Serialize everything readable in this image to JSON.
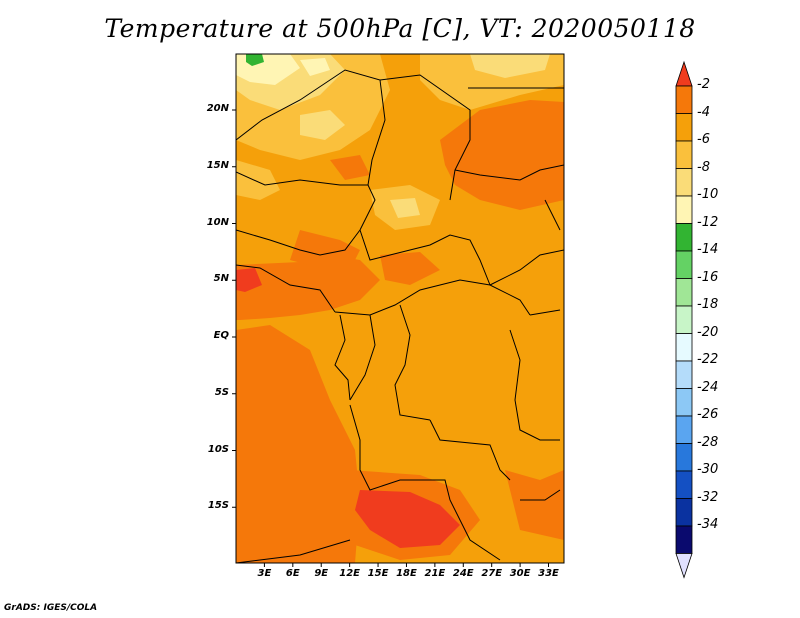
{
  "title": "Temperature at 500hPa [C], VT: 2020050118",
  "footer": "GrADS: IGES/COLA",
  "lat_ticks": [
    {
      "label": "20N",
      "lat": 20
    },
    {
      "label": "15N",
      "lat": 15
    },
    {
      "label": "10N",
      "lat": 10
    },
    {
      "label": "5N",
      "lat": 5
    },
    {
      "label": "EQ",
      "lat": 0
    },
    {
      "label": "5S",
      "lat": -5
    },
    {
      "label": "10S",
      "lat": -10
    },
    {
      "label": "15S",
      "lat": -15
    }
  ],
  "lon_ticks": [
    {
      "label": "3E",
      "lon": 3
    },
    {
      "label": "6E",
      "lon": 6
    },
    {
      "label": "9E",
      "lon": 9
    },
    {
      "label": "12E",
      "lon": 12
    },
    {
      "label": "15E",
      "lon": 15
    },
    {
      "label": "18E",
      "lon": 18
    },
    {
      "label": "21E",
      "lon": 21
    },
    {
      "label": "24E",
      "lon": 24
    },
    {
      "label": "27E",
      "lon": 27
    },
    {
      "label": "30E",
      "lon": 30
    },
    {
      "label": "33E",
      "lon": 33
    }
  ],
  "colorbar": {
    "levels": [
      "-2",
      "-4",
      "-6",
      "-8",
      "-10",
      "-12",
      "-14",
      "-16",
      "-18",
      "-20",
      "-22",
      "-24",
      "-26",
      "-28",
      "-30",
      "-32",
      "-34"
    ],
    "colors": [
      "#f03c1e",
      "#f5780a",
      "#f5a00a",
      "#fac03c",
      "#fadc78",
      "#fff5b4",
      "#32b432",
      "#64d264",
      "#a0e696",
      "#c8f5c8",
      "#e6faff",
      "#b4dcfa",
      "#8cc8f5",
      "#5aa5f0",
      "#2878dc",
      "#1450c3",
      "#0a32a0",
      "#0a0a6e",
      "#e1e1ff"
    ]
  },
  "colors": {
    "base_orange": "#f5a00a",
    "warm": "#f5780a",
    "hot": "#f03c1e",
    "light": "#fac03c",
    "pale": "#fadc78",
    "paler": "#fff5b4",
    "green": "#32b432"
  }
}
